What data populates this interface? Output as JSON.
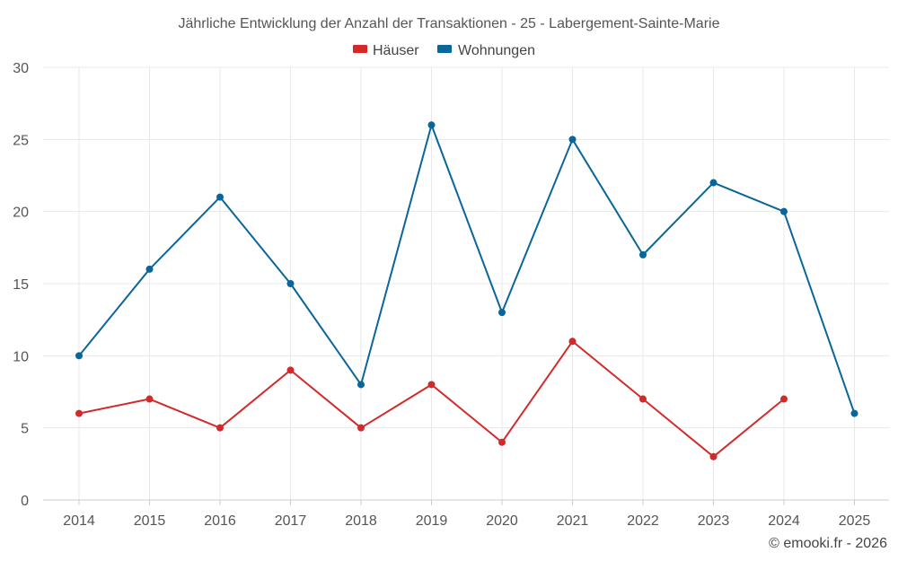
{
  "chart_data": {
    "type": "line",
    "title": "Jährliche Entwicklung der Anzahl der Transaktionen - 25 - Labergement-Sainte-Marie",
    "x": [
      "2014",
      "2015",
      "2016",
      "2017",
      "2018",
      "2019",
      "2020",
      "2021",
      "2022",
      "2023",
      "2024",
      "2025"
    ],
    "series": [
      {
        "name": "Häuser",
        "color": "#d22a2a",
        "values": [
          6,
          7,
          5,
          9,
          5,
          8,
          4,
          11,
          7,
          3,
          7,
          null
        ]
      },
      {
        "name": "Wohnungen",
        "color": "#0a6699",
        "values": [
          10,
          16,
          21,
          15,
          8,
          26,
          13,
          25,
          17,
          22,
          20,
          6
        ]
      }
    ],
    "ylim": [
      0,
      30
    ],
    "yticks": [
      0,
      5,
      10,
      15,
      20,
      25,
      30
    ],
    "xlabel": "",
    "ylabel": "",
    "grid": true,
    "legend": "top-center"
  },
  "credit": "© emooki.fr - 2026"
}
